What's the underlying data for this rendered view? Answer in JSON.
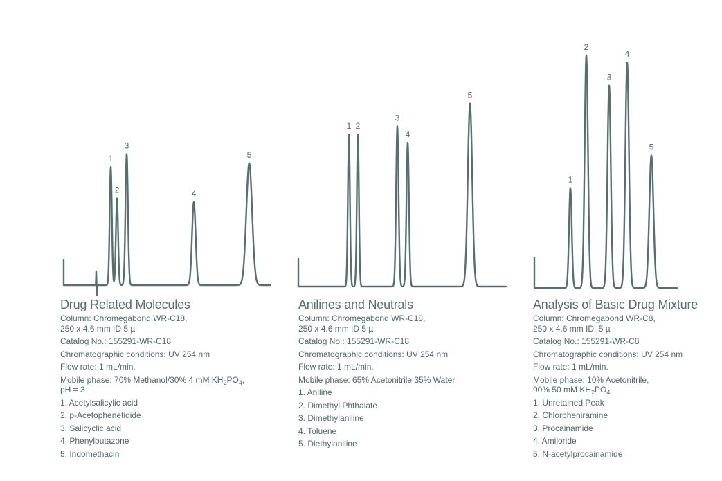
{
  "chart_data": [
    {
      "type": "line",
      "title": "Drug Related Molecules",
      "column": "Column: Chromegabond WR-C18,",
      "column_spec": "250 x 4.6 mm ID 5 µ",
      "catalog": "Catalog No.: 155291-WR-C18",
      "conditions": "Chromatographic conditions: UV 254 nm",
      "flow_rate": "Flow rate: 1 mL/min.",
      "mobile_phase": {
        "text": "Mobile phase: 70% Methanol/30% 4 mM KH",
        "sub1": "2",
        "mid": "PO",
        "sub2": "4",
        "end": ",",
        "line2": "pH = 3"
      },
      "peaks": [
        {
          "label": "1",
          "compound": "1. Acetylsalicylic acid",
          "height": 0.64
        },
        {
          "label": "2",
          "compound": "2. p-Acetophenetidide",
          "height": 0.47
        },
        {
          "label": "3",
          "compound": "3. Salicyclic acid",
          "height": 0.71
        },
        {
          "label": "4",
          "compound": "4. Phenylbutazone",
          "height": 0.45
        },
        {
          "label": "5",
          "compound": "5. Indomethacin",
          "height": 0.66
        }
      ]
    },
    {
      "type": "line",
      "title": "Anilines and Neutrals",
      "column": "Column: Chromegabond WR-C18,",
      "column_spec": "250 x 4.6 mm ID 5 µ",
      "catalog": "Catalog No.: 155291-WR-C18",
      "conditions": "Chromatographic conditions: UV 254 nm",
      "flow_rate": "Flow rate: 1 mL/min.",
      "mobile_phase": {
        "text": "Mobile phase: 65% Acetonitrile  35% Water"
      },
      "peaks": [
        {
          "label": "1",
          "compound": "1. Aniline",
          "height": 0.74
        },
        {
          "label": "2",
          "compound": "2. Dimethyl Phthalate",
          "height": 0.74
        },
        {
          "label": "3",
          "compound": "3. Dimethylaniline",
          "height": 0.78
        },
        {
          "label": "4",
          "compound": "4. Toluene",
          "height": 0.7
        },
        {
          "label": "5",
          "compound": "5. Diethylaniline",
          "height": 0.89
        }
      ]
    },
    {
      "type": "line",
      "title": "Analysis of Basic Drug Mixture",
      "column": "Column: Chromegabond WR-C8,",
      "column_spec": "250 x 4.6 mm ID, 5 µ",
      "catalog": "Catalog No.: 155291-WR-C8",
      "conditions": "Chromatographic conditions: UV 254 nm",
      "flow_rate": "Flow rate: 1 mL/min.",
      "mobile_phase": {
        "text": "Mobile phase: 10% Acetonitrile,",
        "line2a": "90% 50 mM KH",
        "sub1": "2",
        "mid": "PO",
        "sub2": "4"
      },
      "peaks": [
        {
          "label": "1",
          "compound": "1. Unretained Peak",
          "height": 0.43
        },
        {
          "label": "2",
          "compound": "2. Chlorpheniramine",
          "height": 1.0
        },
        {
          "label": "3",
          "compound": "3. Procainamide",
          "height": 0.87
        },
        {
          "label": "4",
          "compound": "4. Amiloride",
          "height": 0.97
        },
        {
          "label": "5",
          "compound": "5. N-acetylprocainamide",
          "height": 0.57
        }
      ]
    }
  ]
}
